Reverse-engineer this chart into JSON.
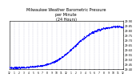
{
  "title": "Milwaukee Weather Barometric Pressure\nper Minute\n(24 Hours)",
  "title_fontsize": 3.5,
  "bg_color": "#ffffff",
  "dot_color": "#0000ff",
  "dot_size": 0.8,
  "ylim": [
    29.4,
    29.9
  ],
  "xlim": [
    0,
    1440
  ],
  "yticks": [
    29.4,
    29.45,
    29.5,
    29.55,
    29.6,
    29.65,
    29.7,
    29.75,
    29.8,
    29.85,
    29.9
  ],
  "ytick_labels": [
    "29.40",
    "29.45",
    "29.50",
    "29.55",
    "29.60",
    "29.65",
    "29.70",
    "29.75",
    "29.80",
    "29.85",
    "29.90"
  ],
  "xtick_positions": [
    0,
    60,
    120,
    180,
    240,
    300,
    360,
    420,
    480,
    540,
    600,
    660,
    720,
    780,
    840,
    900,
    960,
    1020,
    1080,
    1140,
    1200,
    1260,
    1320,
    1380,
    1440
  ],
  "xtick_labels": [
    "12",
    "1",
    "2",
    "3",
    "4",
    "5",
    "6",
    "7",
    "8",
    "9",
    "10",
    "11",
    "12",
    "1",
    "2",
    "3",
    "4",
    "5",
    "6",
    "7",
    "8",
    "9",
    "10",
    "11",
    "12"
  ],
  "grid_color": "#9999bb",
  "grid_alpha": 0.6,
  "grid_lw": 0.3
}
